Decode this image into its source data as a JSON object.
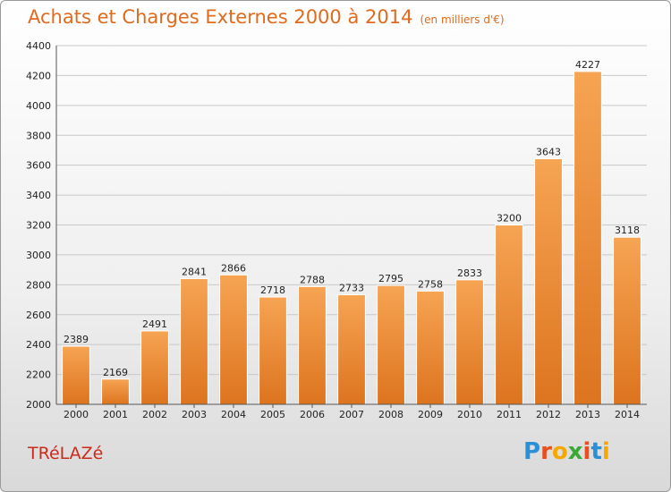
{
  "chart_data": {
    "type": "bar",
    "title": "Achats et Charges Externes 2000 à 2014",
    "subtitle": "(en milliers d'€)",
    "categories": [
      "2000",
      "2001",
      "2002",
      "2003",
      "2004",
      "2005",
      "2006",
      "2007",
      "2008",
      "2009",
      "2010",
      "2011",
      "2012",
      "2013",
      "2014"
    ],
    "values": [
      2389,
      2169,
      2491,
      2841,
      2866,
      2718,
      2788,
      2733,
      2795,
      2758,
      2833,
      3200,
      3643,
      4227,
      3118
    ],
    "ylim": [
      2000,
      4400
    ],
    "yticks": [
      2000,
      2200,
      2400,
      2600,
      2800,
      3000,
      3200,
      3400,
      3600,
      3800,
      4000,
      4200,
      4400
    ],
    "grid": true,
    "bar_color": "#f0913f"
  },
  "place_name": "TRéLAZé",
  "logo": {
    "letters": [
      "P",
      "r",
      "o",
      "x",
      "i",
      "t",
      "i"
    ],
    "colors": [
      "#2a8fd6",
      "#e94e1b",
      "#f5a800",
      "#3aa935",
      "#e94e1b",
      "#2a8fd6",
      "#f5a800"
    ]
  }
}
